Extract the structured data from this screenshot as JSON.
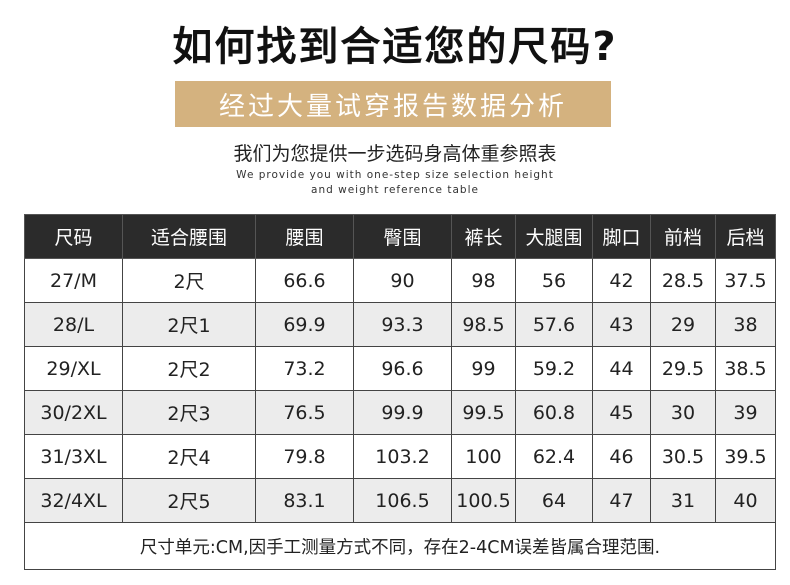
{
  "title": "如何找到合适您的尺码?",
  "banner": "经过大量试穿报告数据分析",
  "subtitle_cn": "我们为您提供一步选码身高体重参照表",
  "subtitle_en_line1": "We provide you with one-step size selection height",
  "subtitle_en_line2": "and weight reference table",
  "table": {
    "headers": [
      "尺码",
      "适合腰围",
      "腰围",
      "臀围",
      "裤长",
      "大腿围",
      "脚口",
      "前档",
      "后档"
    ],
    "rows": [
      [
        "27/M",
        "2尺",
        "66.6",
        "90",
        "98",
        "56",
        "42",
        "28.5",
        "37.5"
      ],
      [
        "28/L",
        "2尺1",
        "69.9",
        "93.3",
        "98.5",
        "57.6",
        "43",
        "29",
        "38"
      ],
      [
        "29/XL",
        "2尺2",
        "73.2",
        "96.6",
        "99",
        "59.2",
        "44",
        "29.5",
        "38.5"
      ],
      [
        "30/2XL",
        "2尺3",
        "76.5",
        "99.9",
        "99.5",
        "60.8",
        "45",
        "30",
        "39"
      ],
      [
        "31/3XL",
        "2尺4",
        "79.8",
        "103.2",
        "100",
        "62.4",
        "46",
        "30.5",
        "39.5"
      ],
      [
        "32/4XL",
        "2尺5",
        "83.1",
        "106.5",
        "100.5",
        "64",
        "47",
        "31",
        "40"
      ]
    ],
    "note": "尺寸单元:CM,因手工测量方式不同，存在2-4CM误差皆属合理范围."
  }
}
